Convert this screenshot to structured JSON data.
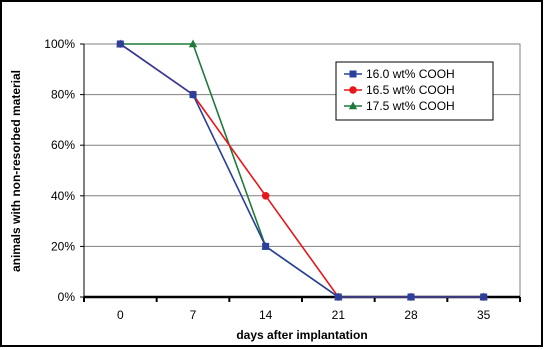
{
  "chart_data": {
    "type": "line",
    "title": "",
    "xlabel": "days after implantation",
    "ylabel": "animals with non-resorbed material",
    "x": [
      0,
      7,
      14,
      21,
      28,
      35
    ],
    "x_ticks": [
      "0",
      "7",
      "14",
      "21",
      "28",
      "35"
    ],
    "y_ticks": [
      "0%",
      "20%",
      "40%",
      "60%",
      "80%",
      "100%"
    ],
    "xlim": [
      -3.5,
      38.5
    ],
    "ylim": [
      0,
      100
    ],
    "grid": true,
    "legend_position": "top-right",
    "series": [
      {
        "name": "16.0 wt% COOH",
        "values": [
          100,
          80,
          20,
          0,
          0,
          0
        ],
        "color": "#2b3f9c",
        "marker": "square"
      },
      {
        "name": "16.5 wt% COOH",
        "values": [
          100,
          80,
          40,
          0,
          0,
          0
        ],
        "color": "#e8151a",
        "marker": "circle"
      },
      {
        "name": "17.5 wt% COOH",
        "values": [
          100,
          100,
          20,
          0,
          0,
          0
        ],
        "color": "#1f7a3a",
        "marker": "triangle"
      }
    ]
  }
}
